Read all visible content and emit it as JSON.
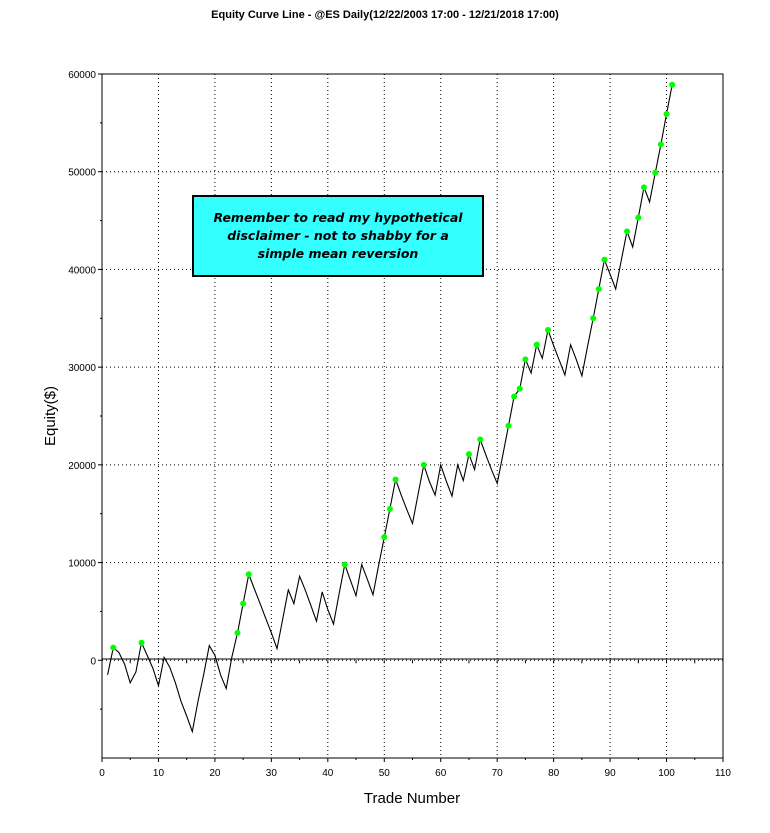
{
  "chart_data": {
    "type": "line",
    "title": "Equity Curve Line - @ES Daily(12/22/2003 17:00 - 12/21/2018 17:00)",
    "xlabel": "Trade Number",
    "ylabel": "Equity($)",
    "xlim": [
      0,
      110
    ],
    "ylim": [
      -10000,
      60000
    ],
    "xticks": [
      0,
      10,
      20,
      30,
      40,
      50,
      60,
      70,
      80,
      90,
      100,
      110
    ],
    "yticks": [
      0,
      10000,
      20000,
      30000,
      40000,
      50000,
      60000
    ],
    "grid": "dotted",
    "annotation": "Remember to read my hypothetical disclaimer - not to shabby for a simple mean reversion",
    "colors": {
      "line": "#000000",
      "new_high_marker": "#00ff00",
      "annotation_bg": "#33ffff"
    },
    "series": [
      {
        "values": [
          [
            1,
            -1500
          ],
          [
            2,
            1300
          ],
          [
            3,
            800
          ],
          [
            4,
            -400
          ],
          [
            5,
            -2300
          ],
          [
            6,
            -1200
          ],
          [
            7,
            1800
          ],
          [
            8,
            500
          ],
          [
            9,
            -800
          ],
          [
            10,
            -2600
          ],
          [
            11,
            300
          ],
          [
            12,
            -700
          ],
          [
            13,
            -2300
          ],
          [
            14,
            -4200
          ],
          [
            15,
            -5700
          ],
          [
            16,
            -7300
          ],
          [
            17,
            -4200
          ],
          [
            18,
            -1500
          ],
          [
            19,
            1500
          ],
          [
            20,
            500
          ],
          [
            21,
            -1500
          ],
          [
            22,
            -2900
          ],
          [
            23,
            300
          ],
          [
            24,
            2800
          ],
          [
            25,
            5800
          ],
          [
            26,
            8800
          ],
          [
            27,
            7300
          ],
          [
            28,
            5800
          ],
          [
            29,
            4300
          ],
          [
            30,
            2800
          ],
          [
            31,
            1200
          ],
          [
            32,
            4200
          ],
          [
            33,
            7200
          ],
          [
            34,
            5800
          ],
          [
            35,
            8600
          ],
          [
            36,
            7200
          ],
          [
            37,
            5600
          ],
          [
            38,
            4000
          ],
          [
            39,
            7000
          ],
          [
            40,
            5200
          ],
          [
            41,
            3700
          ],
          [
            42,
            6800
          ],
          [
            43,
            9800
          ],
          [
            44,
            8200
          ],
          [
            45,
            6600
          ],
          [
            46,
            9800
          ],
          [
            47,
            8300
          ],
          [
            48,
            6700
          ],
          [
            49,
            9700
          ],
          [
            50,
            12600
          ],
          [
            51,
            15500
          ],
          [
            52,
            18500
          ],
          [
            53,
            16900
          ],
          [
            54,
            15400
          ],
          [
            55,
            14000
          ],
          [
            56,
            17000
          ],
          [
            57,
            20000
          ],
          [
            58,
            18300
          ],
          [
            59,
            16900
          ],
          [
            60,
            20000
          ],
          [
            61,
            18300
          ],
          [
            62,
            16800
          ],
          [
            63,
            20000
          ],
          [
            64,
            18400
          ],
          [
            65,
            21100
          ],
          [
            66,
            19500
          ],
          [
            67,
            22600
          ],
          [
            68,
            21000
          ],
          [
            69,
            19500
          ],
          [
            70,
            18100
          ],
          [
            71,
            21000
          ],
          [
            72,
            24000
          ],
          [
            73,
            27000
          ],
          [
            74,
            27800
          ],
          [
            75,
            30800
          ],
          [
            76,
            29400
          ],
          [
            77,
            32300
          ],
          [
            78,
            30900
          ],
          [
            79,
            33800
          ],
          [
            80,
            32200
          ],
          [
            81,
            30700
          ],
          [
            82,
            29200
          ],
          [
            83,
            32300
          ],
          [
            84,
            30800
          ],
          [
            85,
            29100
          ],
          [
            86,
            32100
          ],
          [
            87,
            35000
          ],
          [
            88,
            38000
          ],
          [
            89,
            41000
          ],
          [
            90,
            39500
          ],
          [
            91,
            38000
          ],
          [
            92,
            41000
          ],
          [
            93,
            43900
          ],
          [
            94,
            42300
          ],
          [
            95,
            45300
          ],
          [
            96,
            48400
          ],
          [
            97,
            46900
          ],
          [
            98,
            49900
          ],
          [
            99,
            52800
          ],
          [
            100,
            55900
          ],
          [
            101,
            58900
          ]
        ]
      }
    ],
    "new_high_markers": [
      2,
      7,
      24,
      25,
      26,
      43,
      50,
      51,
      52,
      57,
      65,
      67,
      72,
      73,
      74,
      75,
      77,
      79,
      87,
      88,
      89,
      93,
      95,
      96,
      98,
      99,
      100,
      101
    ]
  }
}
